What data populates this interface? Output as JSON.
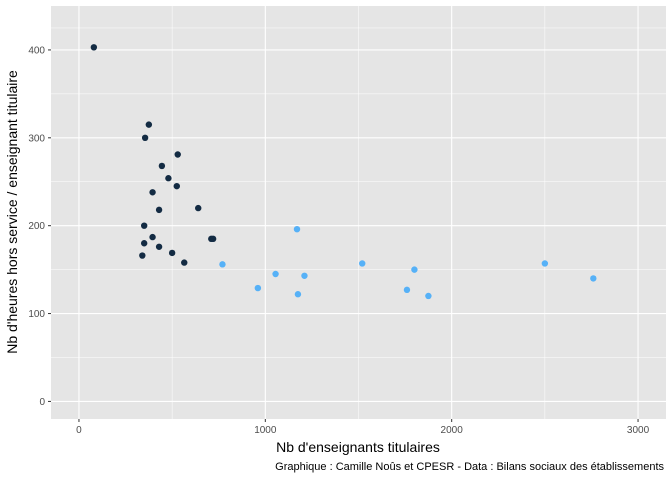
{
  "chart_data": {
    "type": "scatter",
    "title": "",
    "xlabel": "Nb d'enseignants titulaires",
    "ylabel": "Nb d'heures hors service / enseignant titulaire",
    "caption": "Graphique : Camille Noûs et CPESR - Data : Bilans sociaux des établissements",
    "xlim": [
      -150,
      3150
    ],
    "ylim": [
      -20,
      450
    ],
    "x_ticks": [
      0,
      1000,
      2000,
      3000
    ],
    "y_ticks": [
      0,
      100,
      200,
      300,
      400
    ],
    "grid": true,
    "legend": "none",
    "colors": {
      "panel": "#e5e5e5",
      "grid": "#ffffff",
      "dark": "#132b43",
      "light": "#56b1f7"
    },
    "series": [
      {
        "color": "#132b43",
        "points": [
          [
            80,
            403
          ],
          [
            375,
            315
          ],
          [
            355,
            300
          ],
          [
            530,
            281
          ],
          [
            445,
            268
          ],
          [
            480,
            254
          ],
          [
            525,
            245
          ],
          [
            395,
            238
          ],
          [
            640,
            220
          ],
          [
            430,
            218
          ],
          [
            350,
            200
          ],
          [
            395,
            187
          ],
          [
            710,
            185
          ],
          [
            720,
            185
          ],
          [
            350,
            180
          ],
          [
            430,
            176
          ],
          [
            500,
            169
          ],
          [
            340,
            166
          ],
          [
            565,
            158
          ]
        ]
      },
      {
        "color": "#56b1f7",
        "points": [
          [
            1170,
            196
          ],
          [
            1520,
            157
          ],
          [
            2500,
            157
          ],
          [
            770,
            156
          ],
          [
            1800,
            150
          ],
          [
            1055,
            145
          ],
          [
            1210,
            143
          ],
          [
            2760,
            140
          ],
          [
            960,
            129
          ],
          [
            1760,
            127
          ],
          [
            1175,
            122
          ],
          [
            1875,
            120
          ]
        ]
      }
    ]
  }
}
